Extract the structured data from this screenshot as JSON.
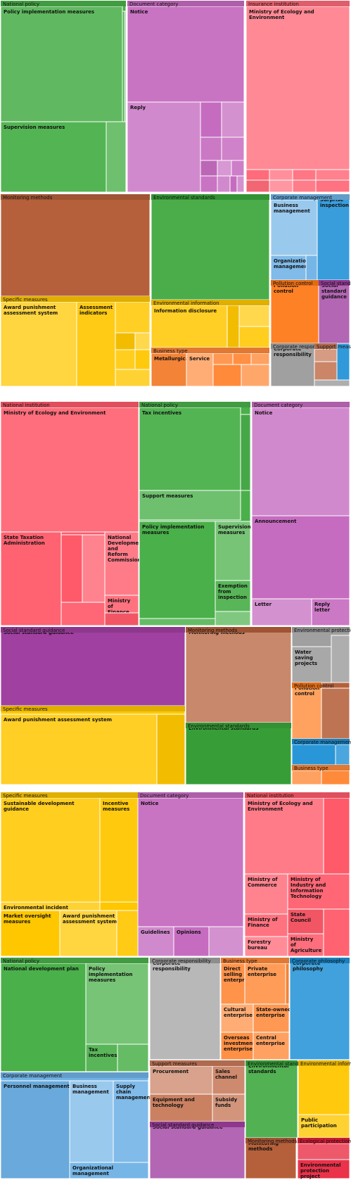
{
  "chart_data": [
    {
      "type": "treemap",
      "groups": [
        {
          "name": "National policy",
          "color": "#4ab04a",
          "children": [
            {
              "name": "Policy implementation measures",
              "value": 128
            },
            {
              "name": "Supervision measures",
              "value": 72
            },
            {
              "name": "",
              "value": 22
            },
            {
              "name": "",
              "value": 7
            },
            {
              "name": "",
              "value": 4
            }
          ]
        },
        {
          "name": "Document category",
          "color": "#c66cc0",
          "children": [
            {
              "name": "Notice",
              "value": 170
            },
            {
              "name": "Reply",
              "value": 71
            },
            {
              "name": "",
              "value": 14
            },
            {
              "name": "",
              "value": 13
            },
            {
              "name": "",
              "value": 13
            },
            {
              "name": "",
              "value": 12
            },
            {
              "name": "",
              "value": 12
            },
            {
              "name": "",
              "value": 9
            },
            {
              "name": "",
              "value": 6
            },
            {
              "name": "",
              "value": 6
            },
            {
              "name": "",
              "value": 5
            },
            {
              "name": "",
              "value": 4
            },
            {
              "name": "",
              "value": 4
            }
          ]
        },
        {
          "name": "Insurance institution",
          "color": "#ff6b7a",
          "children": [
            {
              "name": "Ministry of Ecology and Environment",
              "value": 290
            },
            {
              "name": "",
              "value": 9
            },
            {
              "name": "",
              "value": 9
            },
            {
              "name": "",
              "value": 9
            },
            {
              "name": "",
              "value": 9
            },
            {
              "name": "",
              "value": 8
            },
            {
              "name": "",
              "value": 8
            },
            {
              "name": "",
              "value": 8
            },
            {
              "name": "",
              "value": 7
            }
          ]
        },
        {
          "name": "Monitoring methods",
          "color": "#b5603a",
          "children": [
            {
              "name": "",
              "value": 250
            }
          ]
        },
        {
          "name": "Specific measures",
          "color": "#ffc700",
          "children": [
            {
              "name": "Award punishment assessment system",
              "value": 115
            },
            {
              "name": "Assessment indicators",
              "value": 55
            },
            {
              "name": "",
              "value": 16
            },
            {
              "name": "",
              "value": 14
            },
            {
              "name": "",
              "value": 14
            },
            {
              "name": "",
              "value": 10
            },
            {
              "name": "",
              "value": 8
            },
            {
              "name": "",
              "value": 6
            }
          ]
        },
        {
          "name": "Environmental standards",
          "color": "#3aa63a",
          "children": [
            {
              "name": "",
              "value": 235
            }
          ]
        },
        {
          "name": "Environmental information",
          "color": "#ffc700",
          "children": [
            {
              "name": "Information disclosure",
              "value": 90
            },
            {
              "name": "",
              "value": 20
            },
            {
              "name": "",
              "value": 12
            },
            {
              "name": "",
              "value": 8
            }
          ]
        },
        {
          "name": "Business type",
          "color": "#ff8a3a",
          "children": [
            {
              "name": "Metallurgical",
              "value": 18
            },
            {
              "name": "Service",
              "value": 15
            },
            {
              "name": "",
              "value": 9
            },
            {
              "name": "",
              "value": 8
            },
            {
              "name": "",
              "value": 7
            },
            {
              "name": "",
              "value": 6
            },
            {
              "name": "",
              "value": 5
            }
          ]
        },
        {
          "name": "Corporate management",
          "color": "#6fb2e6",
          "children": [
            {
              "name": "Business management",
              "value": 50
            },
            {
              "name": "Organizational management",
              "value": 25
            },
            {
              "name": "",
              "value": 5
            }
          ]
        },
        {
          "name": "Surprise inspection",
          "color": "#1e90d6",
          "children": [
            {
              "name": "Surprise inspection",
              "value": 70
            }
          ]
        },
        {
          "name": "Pollution control",
          "color": "#ff7a1a",
          "children": [
            {
              "name": "Pollution control",
              "value": 60
            }
          ]
        },
        {
          "name": "Social standard guidance",
          "color": "#a040a0",
          "children": [
            {
              "name": "Social standard guidance",
              "value": 40
            }
          ]
        },
        {
          "name": "Corporate responsibility",
          "color": "#a0a0a0",
          "children": [
            {
              "name": "Corporate responsibility",
              "value": 36
            }
          ]
        },
        {
          "name": "Support measures",
          "color": "#c77a5a",
          "children": [
            {
              "name": "",
              "value": 12
            },
            {
              "name": "",
              "value": 6
            }
          ]
        },
        {
          "name": "",
          "color": "#1e90d6",
          "children": [
            {
              "name": "",
              "value": 6
            }
          ]
        },
        {
          "name": "",
          "color": "#a0a0a0",
          "children": [
            {
              "name": "",
              "value": 4
            }
          ]
        }
      ]
    },
    {
      "type": "treemap",
      "groups": [
        {
          "name": "National institution",
          "color": "#ff5a6a",
          "children": [
            {
              "name": "Ministry of Ecology and Environment",
              "value": 170
            },
            {
              "name": "State Taxation Administration",
              "value": 60
            },
            {
              "name": "National Development and Reform Commission",
              "value": 40
            },
            {
              "name": "",
              "value": 20
            },
            {
              "name": "",
              "value": 15
            },
            {
              "name": "",
              "value": 15
            },
            {
              "name": "Ministry of Finance",
              "value": 10
            },
            {
              "name": "",
              "value": 10
            }
          ]
        },
        {
          "name": "National policy",
          "color": "#4ab04a",
          "children": [
            {
              "name": "Tax incentives",
              "value": 90
            },
            {
              "name": "Support measures",
              "value": 30
            },
            {
              "name": "Policy implementation measures",
              "value": 95
            },
            {
              "name": "Supervision measures",
              "value": 50
            },
            {
              "name": "Exemption from inspection",
              "value": 25
            },
            {
              "name": "",
              "value": 8
            },
            {
              "name": "",
              "value": 6
            },
            {
              "name": "",
              "value": 5
            }
          ]
        },
        {
          "name": "Document category",
          "color": "#c66cc0",
          "children": [
            {
              "name": "Notice",
              "value": 120
            },
            {
              "name": "Announcement",
              "value": 100
            },
            {
              "name": "Letter",
              "value": 30
            },
            {
              "name": "Reply letter",
              "value": 20
            }
          ]
        },
        {
          "name": "Social standard guidance",
          "color": "#a040a0",
          "children": [
            {
              "name": "Social standard guidance",
              "value": 200
            }
          ]
        },
        {
          "name": "Monitoring methods",
          "color": "#b5603a",
          "children": [
            {
              "name": "Monitoring methods",
              "value": 150
            }
          ]
        },
        {
          "name": "Environmental protection project",
          "color": "#a0a0a0",
          "children": [
            {
              "name": "Water saving projects",
              "value": 40
            },
            {
              "name": "",
              "value": 25
            }
          ]
        },
        {
          "name": "Specific measures",
          "color": "#ffc700",
          "children": [
            {
              "name": "Award punishment assessment system",
              "value": 160
            },
            {
              "name": "",
              "value": 30
            }
          ]
        },
        {
          "name": "Environmental standards",
          "color": "#3aa63a",
          "children": [
            {
              "name": "Environmental standards",
              "value": 100
            }
          ]
        },
        {
          "name": "Pollution control",
          "color": "#ff7a1a",
          "children": [
            {
              "name": "Pollution control",
              "value": 45
            }
          ]
        },
        {
          "name": "",
          "color": "#b5603a",
          "children": [
            {
              "name": "",
              "value": 40
            }
          ]
        },
        {
          "name": "Corporate management",
          "color": "#1e90d6",
          "children": [
            {
              "name": "",
              "value": 25
            },
            {
              "name": "",
              "value": 6
            }
          ]
        },
        {
          "name": "Business type",
          "color": "#ff8a3a",
          "children": [
            {
              "name": "",
              "value": 10
            },
            {
              "name": "",
              "value": 8
            }
          ]
        }
      ]
    },
    {
      "type": "treemap",
      "groups": [
        {
          "name": "Specific measures",
          "color": "#ffc700",
          "children": [
            {
              "name": "Sustainable development guidance",
              "value": 140
            },
            {
              "name": "Incentive measures",
              "value": 55
            },
            {
              "name": "Environmental incident emergency response plan",
              "value": 20
            },
            {
              "name": "Market oversight measures",
              "value": 30
            },
            {
              "name": "Award punishment assessment system",
              "value": 30
            },
            {
              "name": "",
              "value": 20
            }
          ]
        },
        {
          "name": "Document category",
          "color": "#c66cc0",
          "children": [
            {
              "name": "Notice",
              "value": 200
            },
            {
              "name": "Guidelines",
              "value": 20
            },
            {
              "name": "Opinions",
              "value": 20
            },
            {
              "name": "",
              "value": 15
            }
          ]
        },
        {
          "name": "National institution",
          "color": "#ff5a6a",
          "children": [
            {
              "name": "Ministry of Ecology and Environment",
              "value": 100
            },
            {
              "name": "",
              "value": 30
            },
            {
              "name": "Ministry of Commerce",
              "value": 45
            },
            {
              "name": "Ministry of Industry and Information Technology",
              "value": 40
            },
            {
              "name": "Ministry of Finance",
              "value": 25
            },
            {
              "name": "State Council",
              "value": 25
            },
            {
              "name": "Forestry bureau",
              "value": 20
            },
            {
              "name": "Ministry of Agriculture",
              "value": 20
            },
            {
              "name": "",
              "value": 8
            }
          ]
        },
        {
          "name": "National policy",
          "color": "#4ab04a",
          "children": [
            {
              "name": "National development plan",
              "value": 140
            },
            {
              "name": "Policy implementation measures",
              "value": 85
            },
            {
              "name": "Tax incentives",
              "value": 40
            },
            {
              "name": "",
              "value": 30
            }
          ]
        },
        {
          "name": "Corporate responsibility",
          "color": "#a0a0a0",
          "children": [
            {
              "name": "Corporate responsibility",
              "value": 150
            }
          ]
        },
        {
          "name": "Business type",
          "color": "#ff8a3a",
          "children": [
            {
              "name": "Direct selling enterprise",
              "value": 30
            },
            {
              "name": "Private enterprise",
              "value": 30
            },
            {
              "name": "",
              "value": 5
            },
            {
              "name": "Cultural enterprise",
              "value": 22
            },
            {
              "name": "State-owned enterprise",
              "value": 22
            },
            {
              "name": "Overseas investment enterprise",
              "value": 25
            },
            {
              "name": "Central enterprise",
              "value": 25
            }
          ]
        },
        {
          "name": "Corporate philosophy",
          "color": "#1e90d6",
          "children": [
            {
              "name": "Corporate philosophy",
              "value": 130
            }
          ]
        },
        {
          "name": "Corporate management",
          "color": "#6fb2e6",
          "children": [
            {
              "name": "Personnel management",
              "value": 90
            },
            {
              "name": "Business management",
              "value": 60
            },
            {
              "name": "Supply chain management",
              "value": 45
            },
            {
              "name": "Organizational management",
              "value": 15
            }
          ]
        },
        {
          "name": "Support measures",
          "color": "#c77a5a",
          "children": [
            {
              "name": "Procurement",
              "value": 45
            },
            {
              "name": "Sales channel",
              "value": 30
            },
            {
              "name": "Equipment and technology",
              "value": 45
            },
            {
              "name": "Subsidy funds",
              "value": 30
            }
          ]
        },
        {
          "name": "Environmental standards",
          "color": "#3aa63a",
          "children": [
            {
              "name": "Environmental standards",
              "value": 110
            }
          ]
        },
        {
          "name": "Environmental information",
          "color": "#ffc700",
          "children": [
            {
              "name": "",
              "value": 40
            },
            {
              "name": "Public participation",
              "value": 25
            }
          ]
        },
        {
          "name": "Social standard guidance",
          "color": "#a040a0",
          "children": [
            {
              "name": "Social standard guidance",
              "value": 70
            }
          ]
        },
        {
          "name": "Monitoring methods",
          "color": "#b5603a",
          "children": [
            {
              "name": "Monitoring methods",
              "value": 50
            }
          ]
        },
        {
          "name": "Ecological protection",
          "color": "#e8203a",
          "children": [
            {
              "name": "",
              "value": 18
            },
            {
              "name": "Environmental protection project",
              "value": 25
            }
          ]
        }
      ]
    }
  ]
}
